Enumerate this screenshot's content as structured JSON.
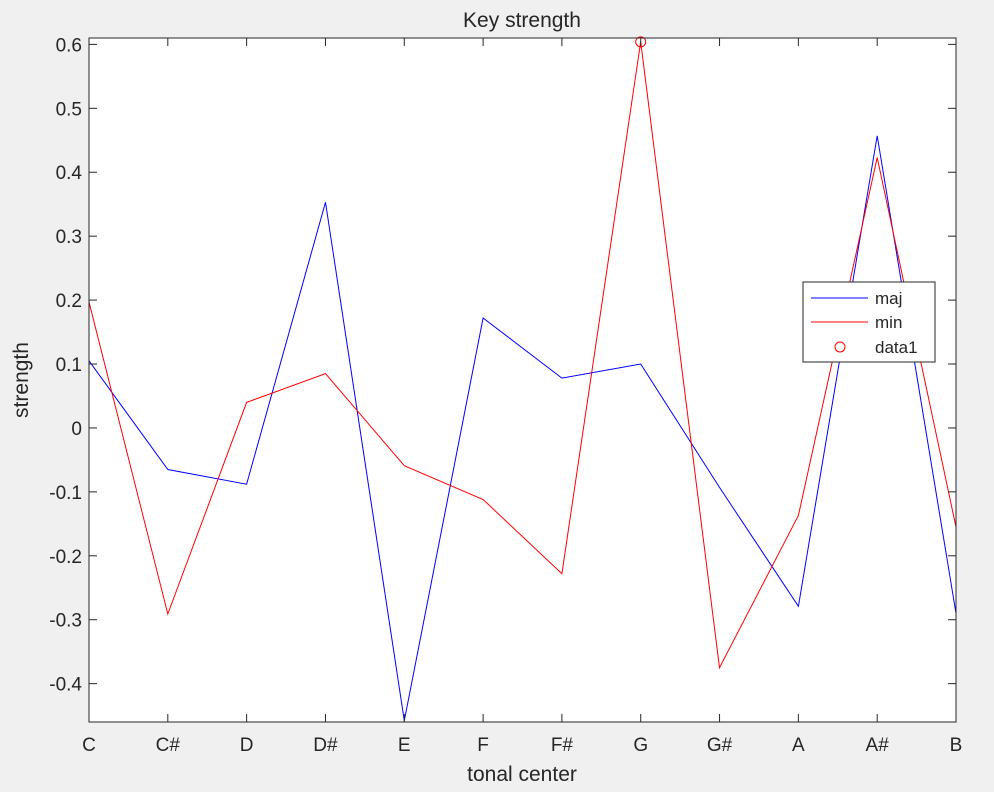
{
  "chart_data": {
    "type": "line",
    "title": "Key strength",
    "xlabel": "tonal center",
    "ylabel": "strength",
    "categories": [
      "C",
      "C#",
      "D",
      "D#",
      "E",
      "F",
      "F#",
      "G",
      "G#",
      "A",
      "A#",
      "B"
    ],
    "ylim": [
      -0.46,
      0.61
    ],
    "yticks": [
      -0.4,
      -0.3,
      -0.2,
      -0.1,
      0,
      0.1,
      0.2,
      0.3,
      0.4,
      0.5,
      0.6
    ],
    "ytick_labels": [
      "-0.4",
      "-0.3",
      "-0.2",
      "-0.1",
      "0",
      "0.1",
      "0.2",
      "0.3",
      "0.4",
      "0.5",
      "0.6"
    ],
    "grid": false,
    "legend_position": "right",
    "series": [
      {
        "name": "maj",
        "color": "#0000ff",
        "values": [
          0.105,
          -0.065,
          -0.088,
          0.353,
          -0.458,
          0.172,
          0.078,
          0.1,
          -0.093,
          -0.279,
          0.457,
          -0.29
        ]
      },
      {
        "name": "min",
        "color": "#ff0000",
        "values": [
          0.197,
          -0.291,
          0.04,
          0.085,
          -0.059,
          -0.112,
          -0.228,
          0.604,
          -0.375,
          -0.137,
          0.423,
          -0.155
        ]
      }
    ],
    "markers": [
      {
        "name": "data1",
        "color": "#ff0000",
        "marker": "circle",
        "x": "G",
        "y": 0.604
      }
    ]
  }
}
